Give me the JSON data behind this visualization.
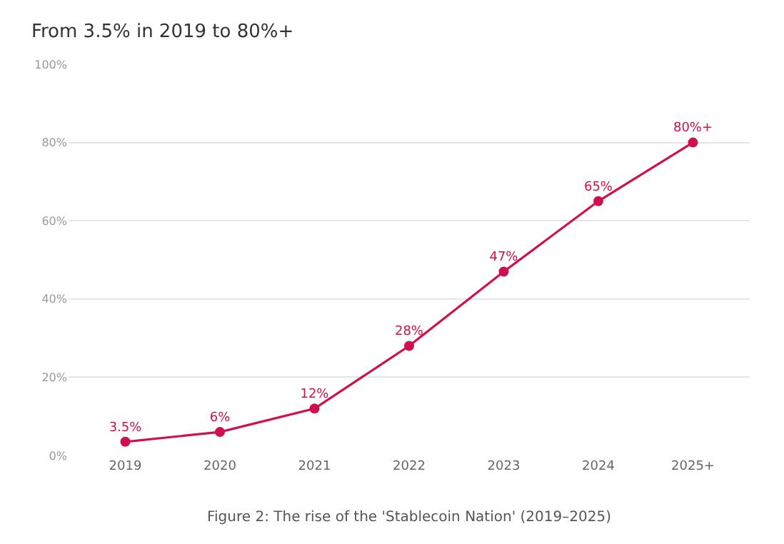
{
  "chart_data": {
    "type": "line",
    "title": "From 3.5% in 2019 to 80%+",
    "categories": [
      "2019",
      "2020",
      "2021",
      "2022",
      "2023",
      "2024",
      "2025+"
    ],
    "series": [
      {
        "color": "#d0104c",
        "values": [
          3.5,
          6,
          12,
          28,
          47,
          65,
          80
        ],
        "value_labels": [
          "3.5%",
          "6%",
          "12%",
          "28%",
          "47%",
          "65%",
          "80%+"
        ]
      }
    ],
    "ylim": [
      0,
      100
    ],
    "yticks": [
      {
        "value": 0,
        "label": "0%"
      },
      {
        "value": 20,
        "label": "20%"
      },
      {
        "value": 40,
        "label": "40%"
      },
      {
        "value": 60,
        "label": "60%"
      },
      {
        "value": 80,
        "label": "80%"
      },
      {
        "value": 100,
        "label": "100%"
      }
    ],
    "grid": "y",
    "marker": "circle",
    "line_style": "solid",
    "legend": false,
    "annotations": [
      "Figure 2: The rise of the 'Stablecoin Nation' (2019–2025)"
    ]
  }
}
